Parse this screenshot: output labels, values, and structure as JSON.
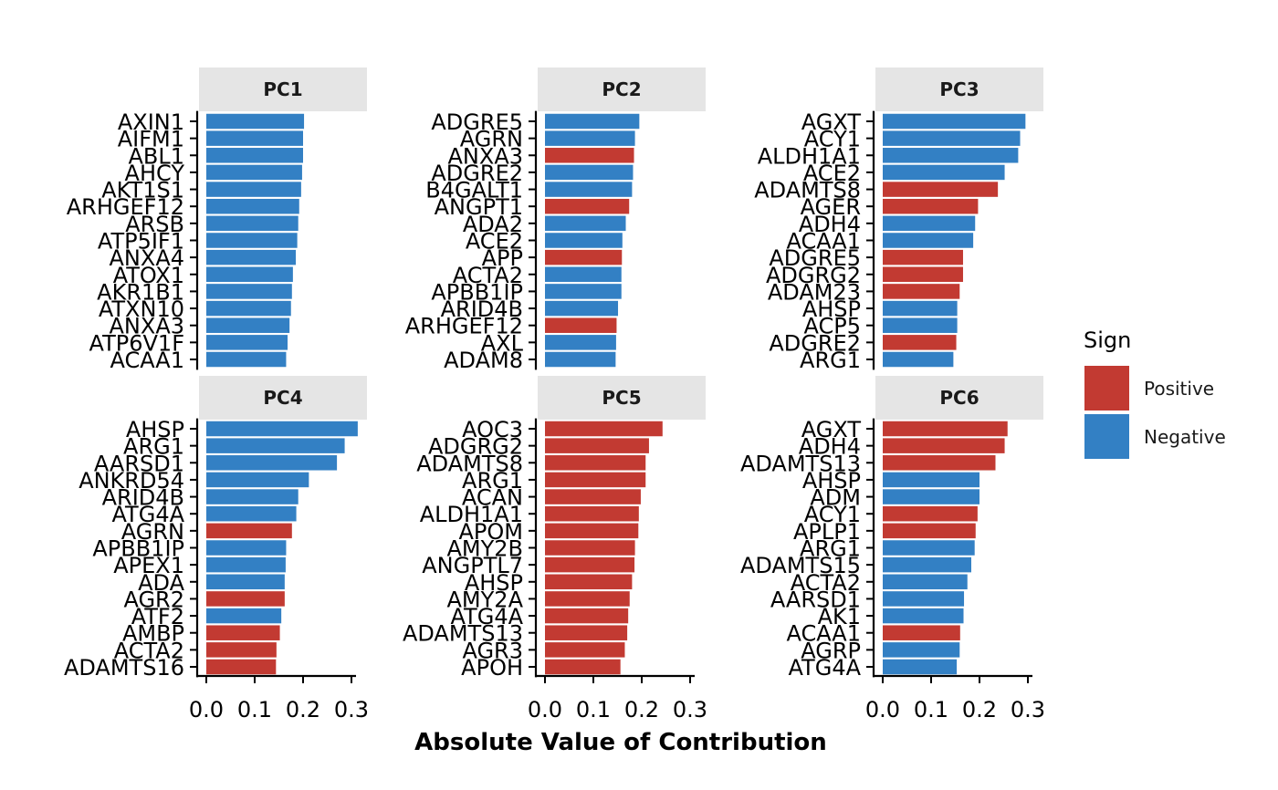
{
  "chart_data": {
    "type": "bar",
    "orientation": "horizontal",
    "xlabel": "Absolute Value of Contribution",
    "xlim": [
      0,
      0.33
    ],
    "xticks": [
      "0.0",
      "0.1",
      "0.2",
      "0.3"
    ],
    "xtick_values": [
      0,
      0.1,
      0.2,
      0.3
    ],
    "legend": {
      "title": "Sign",
      "position": "right",
      "entries": [
        {
          "label": "Positive",
          "color": "#C23A32"
        },
        {
          "label": "Negative",
          "color": "#3380C4"
        }
      ]
    },
    "panels": [
      {
        "name": "PC1",
        "categories": [
          "AXIN1",
          "AIFM1",
          "ABL1",
          "AHCY",
          "AKT1S1",
          "ARHGEF12",
          "ARSB",
          "ATP5IF1",
          "ANXA4",
          "ATOX1",
          "AKR1B1",
          "ATXN10",
          "ANXA3",
          "ATP6V1F",
          "ACAA1"
        ],
        "values": [
          0.202,
          0.2,
          0.2,
          0.198,
          0.196,
          0.192,
          0.19,
          0.188,
          0.185,
          0.179,
          0.177,
          0.175,
          0.172,
          0.168,
          0.165
        ],
        "signs": [
          "Negative",
          "Negative",
          "Negative",
          "Negative",
          "Negative",
          "Negative",
          "Negative",
          "Negative",
          "Negative",
          "Negative",
          "Negative",
          "Negative",
          "Negative",
          "Negative",
          "Negative"
        ]
      },
      {
        "name": "PC2",
        "categories": [
          "ADGRE5",
          "AGRN",
          "ANXA3",
          "ADGRE2",
          "B4GALT1",
          "ANGPT1",
          "ADA2",
          "ACE2",
          "APP",
          "ACTA2",
          "APBB1IP",
          "ARID4B",
          "ARHGEF12",
          "AXL",
          "ADAM8"
        ],
        "values": [
          0.195,
          0.186,
          0.184,
          0.182,
          0.18,
          0.174,
          0.167,
          0.16,
          0.159,
          0.158,
          0.158,
          0.151,
          0.148,
          0.147,
          0.146
        ],
        "signs": [
          "Negative",
          "Negative",
          "Positive",
          "Negative",
          "Negative",
          "Positive",
          "Negative",
          "Negative",
          "Positive",
          "Negative",
          "Negative",
          "Negative",
          "Positive",
          "Negative",
          "Negative"
        ]
      },
      {
        "name": "PC3",
        "categories": [
          "AGXT",
          "ACY1",
          "ALDH1A1",
          "ACE2",
          "ADAMTS8",
          "AGER",
          "ADH4",
          "ACAA1",
          "ADGRE5",
          "ADGRG2",
          "ADAM23",
          "AHSP",
          "ACP5",
          "ADGRE2",
          "ARG1"
        ],
        "values": [
          0.295,
          0.284,
          0.28,
          0.252,
          0.238,
          0.197,
          0.191,
          0.187,
          0.166,
          0.166,
          0.159,
          0.154,
          0.154,
          0.152,
          0.146
        ],
        "signs": [
          "Negative",
          "Negative",
          "Negative",
          "Negative",
          "Positive",
          "Positive",
          "Negative",
          "Negative",
          "Positive",
          "Positive",
          "Positive",
          "Negative",
          "Negative",
          "Positive",
          "Negative"
        ]
      },
      {
        "name": "PC4",
        "categories": [
          "AHSP",
          "ARG1",
          "AARSD1",
          "ANKRD54",
          "ARID4B",
          "ATG4A",
          "AGRN",
          "APBB1IP",
          "APEX1",
          "ADA",
          "AGR2",
          "ATF2",
          "AMBP",
          "ACTA2",
          "ADAMTS16"
        ],
        "values": [
          0.313,
          0.286,
          0.27,
          0.212,
          0.19,
          0.186,
          0.177,
          0.165,
          0.164,
          0.162,
          0.162,
          0.155,
          0.152,
          0.145,
          0.144
        ],
        "signs": [
          "Negative",
          "Negative",
          "Negative",
          "Negative",
          "Negative",
          "Negative",
          "Positive",
          "Negative",
          "Negative",
          "Negative",
          "Positive",
          "Negative",
          "Positive",
          "Positive",
          "Positive"
        ]
      },
      {
        "name": "PC5",
        "categories": [
          "AOC3",
          "ADGRG2",
          "ADAMTS8",
          "ARG1",
          "ACAN",
          "ALDH1A1",
          "APOM",
          "AMY2B",
          "ANGPTL7",
          "AHSP",
          "AMY2A",
          "ATG4A",
          "ADAMTS13",
          "AGR3",
          "APOH"
        ],
        "values": [
          0.243,
          0.215,
          0.208,
          0.208,
          0.198,
          0.194,
          0.193,
          0.186,
          0.185,
          0.18,
          0.175,
          0.172,
          0.17,
          0.165,
          0.156
        ],
        "signs": [
          "Positive",
          "Positive",
          "Positive",
          "Positive",
          "Positive",
          "Positive",
          "Positive",
          "Positive",
          "Positive",
          "Positive",
          "Positive",
          "Positive",
          "Positive",
          "Positive",
          "Positive"
        ]
      },
      {
        "name": "PC6",
        "categories": [
          "AGXT",
          "ADH4",
          "ADAMTS13",
          "AHSP",
          "ADM",
          "ACY1",
          "APLP1",
          "ARG1",
          "ADAMTS15",
          "ACTA2",
          "AARSD1",
          "AK1",
          "ACAA1",
          "AGRP",
          "ATG4A"
        ],
        "values": [
          0.258,
          0.252,
          0.233,
          0.2,
          0.2,
          0.196,
          0.192,
          0.19,
          0.183,
          0.175,
          0.168,
          0.167,
          0.16,
          0.159,
          0.153
        ],
        "signs": [
          "Positive",
          "Positive",
          "Positive",
          "Negative",
          "Negative",
          "Positive",
          "Positive",
          "Negative",
          "Negative",
          "Negative",
          "Negative",
          "Negative",
          "Positive",
          "Negative",
          "Negative"
        ]
      }
    ]
  }
}
